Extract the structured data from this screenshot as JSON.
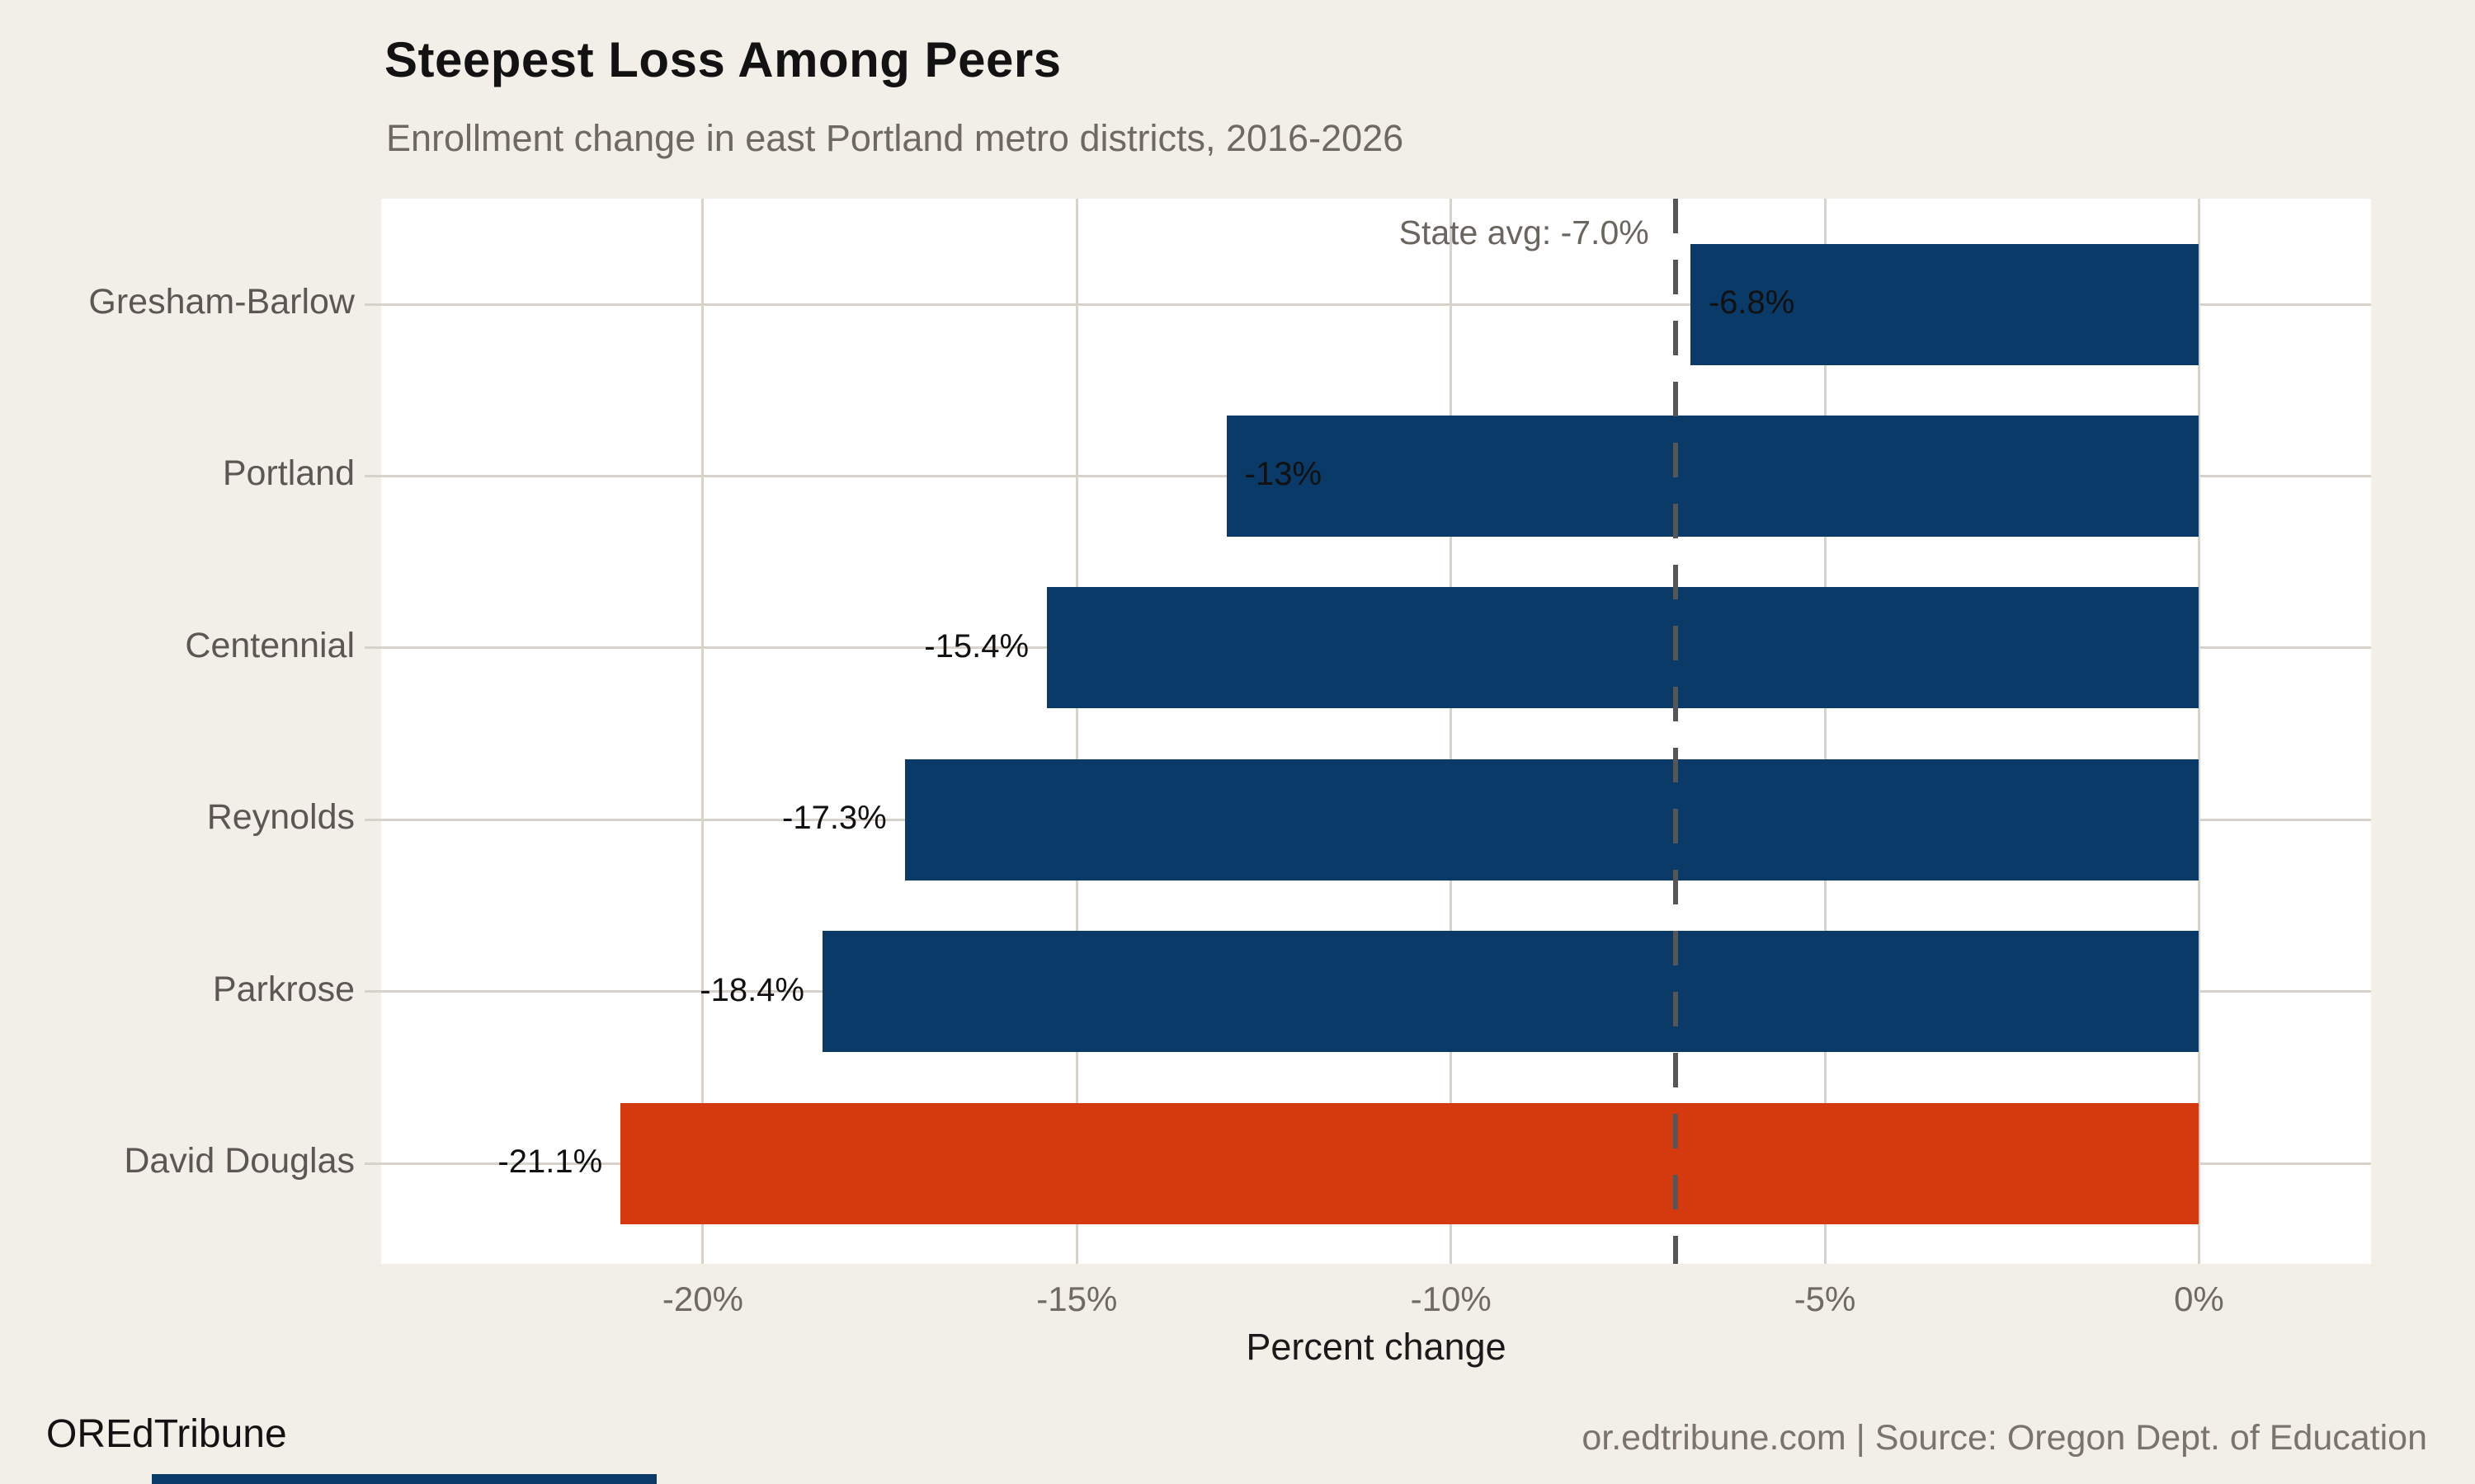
{
  "header": {
    "title": "Steepest Loss Among Peers",
    "subtitle": "Enrollment change in east Portland metro districts, 2016-2026"
  },
  "footer": {
    "logo": "OREdTribune",
    "source": "or.edtribune.com | Source: Oregon Dept. of Education"
  },
  "colors": {
    "background": "#f2efe9",
    "plot_background": "#ffffff",
    "gridline": "#d8d3ca",
    "bar": "#0a3a67",
    "highlight": "#d53a0e",
    "reference_line": "#565656",
    "accent_strip": "#0a3a67"
  },
  "chart_data": {
    "type": "bar",
    "orientation": "horizontal",
    "title": "Steepest Loss Among Peers",
    "subtitle": "Enrollment change in east Portland metro districts, 2016-2026",
    "xlabel": "Percent change",
    "ylabel": "",
    "categories": [
      "Gresham-Barlow",
      "Portland",
      "Centennial",
      "Reynolds",
      "Parkrose",
      "David Douglas"
    ],
    "values": [
      -6.8,
      -13,
      -15.4,
      -17.3,
      -18.4,
      -21.1
    ],
    "bar_labels": [
      "-6.8%",
      "-13%",
      "-15.4%",
      "-17.3%",
      "-18.4%",
      "-21.1%"
    ],
    "labels_inside": [
      true,
      true,
      false,
      false,
      false,
      false
    ],
    "highlight_category": "David Douglas",
    "x_ticks": [
      -20,
      -15,
      -10,
      -5,
      0
    ],
    "x_tick_labels": [
      "-20%",
      "-15%",
      "-10%",
      "-5%",
      "0%"
    ],
    "xlim": [
      -24.3,
      2.3
    ],
    "grid": true,
    "legend": false,
    "reference_line": {
      "value": -7.0,
      "label": "State avg: -7.0%"
    }
  }
}
